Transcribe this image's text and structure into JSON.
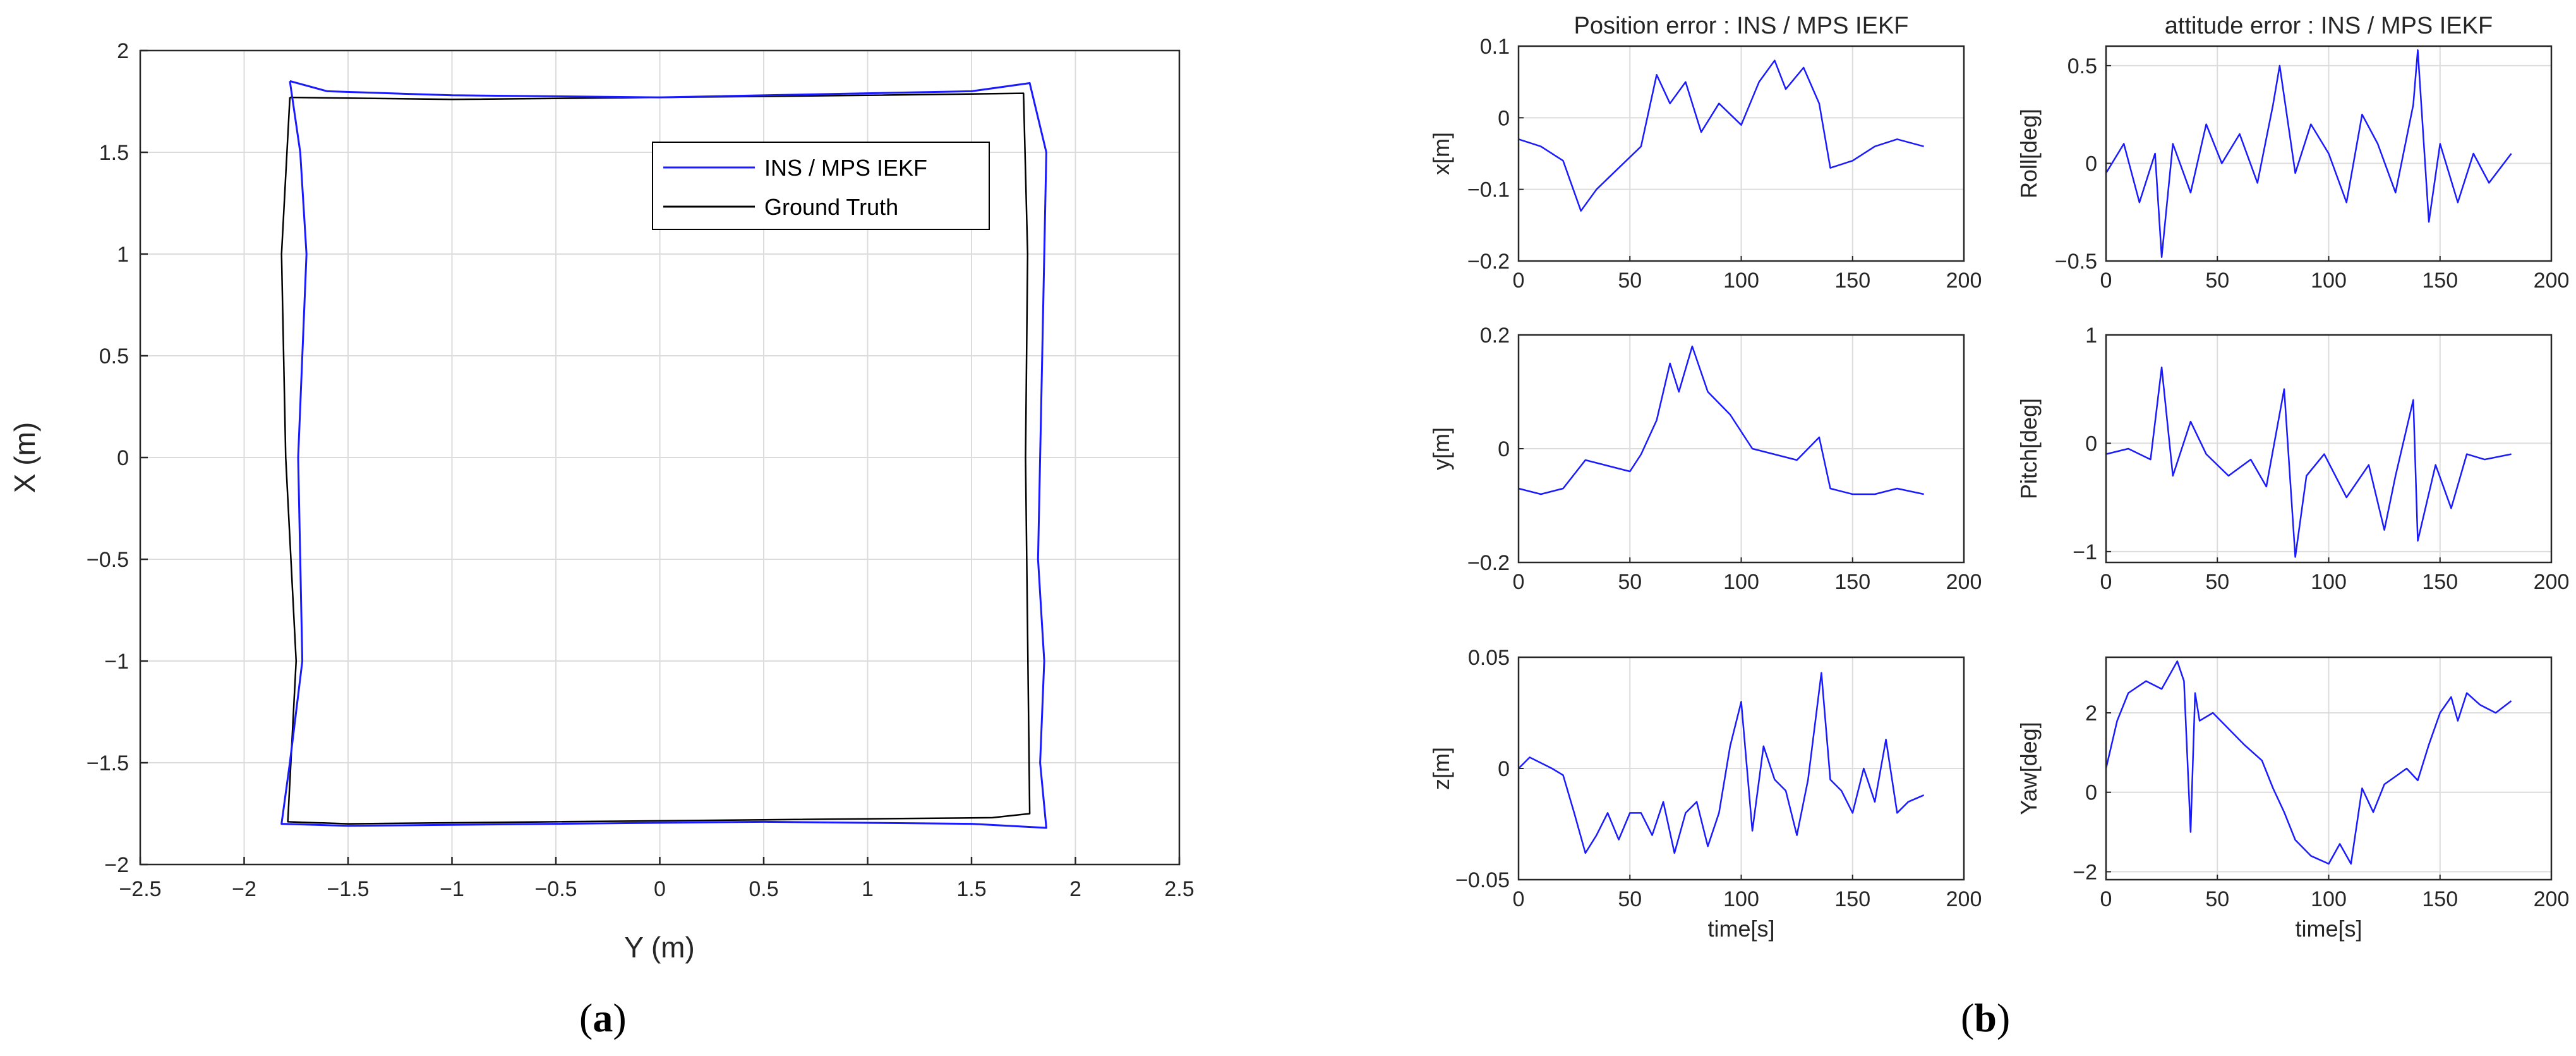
{
  "panel_labels": {
    "a": "a",
    "b": "b"
  },
  "chart_data": [
    {
      "id": "traj",
      "type": "line",
      "xlabel": "Y (m)",
      "ylabel": "X (m)",
      "xlim": [
        -2.5,
        2.5
      ],
      "ylim": [
        -2,
        2
      ],
      "xticks": [
        -2.5,
        -2,
        -1.5,
        -1,
        -0.5,
        0,
        0.5,
        1,
        1.5,
        2,
        2.5
      ],
      "yticks": [
        -2,
        -1.5,
        -1,
        -0.5,
        0,
        0.5,
        1,
        1.5,
        2
      ],
      "grid": true,
      "legend_position": "top-right",
      "series": [
        {
          "name": "INS / MPS IEKF",
          "color": "#1a1aff",
          "x": [
            -1.78,
            -1.6,
            -1.0,
            0.0,
            1.0,
            1.5,
            1.78,
            1.86,
            1.84,
            1.82,
            1.85,
            1.83,
            1.86,
            1.5,
            0.5,
            -0.5,
            -1.5,
            -1.82,
            -1.78,
            -1.72,
            -1.74,
            -1.7,
            -1.73,
            -1.78
          ],
          "y": [
            1.85,
            1.8,
            1.78,
            1.77,
            1.79,
            1.8,
            1.84,
            1.5,
            0.5,
            -0.5,
            -1.0,
            -1.5,
            -1.82,
            -1.8,
            -1.79,
            -1.8,
            -1.81,
            -1.8,
            -1.5,
            -1.0,
            0.0,
            1.0,
            1.5,
            1.85
          ]
        },
        {
          "name": "Ground Truth",
          "color": "#000000",
          "x": [
            -1.78,
            -1.0,
            0.0,
            1.0,
            1.75,
            1.77,
            1.76,
            1.78,
            1.6,
            0.5,
            -0.5,
            -1.5,
            -1.79,
            -1.75,
            -1.8,
            -1.82,
            -1.78
          ],
          "y": [
            1.77,
            1.76,
            1.77,
            1.78,
            1.79,
            1.0,
            0.0,
            -1.75,
            -1.77,
            -1.78,
            -1.79,
            -1.8,
            -1.79,
            -1.0,
            0.0,
            1.0,
            1.77
          ]
        }
      ]
    },
    {
      "id": "pos_x",
      "type": "line",
      "title": "Position error : INS / MPS IEKF",
      "xlabel": "",
      "ylabel": "x[m]",
      "xlim": [
        0,
        200
      ],
      "ylim": [
        -0.2,
        0.1
      ],
      "xticks": [
        0,
        50,
        100,
        150,
        200
      ],
      "yticks": [
        -0.2,
        -0.1,
        0,
        0.1
      ],
      "grid": true,
      "series": [
        {
          "color": "#1a1aff",
          "x": [
            0,
            10,
            20,
            28,
            35,
            45,
            55,
            62,
            68,
            75,
            82,
            90,
            100,
            108,
            115,
            120,
            128,
            135,
            140,
            150,
            160,
            170,
            182
          ],
          "y": [
            -0.03,
            -0.04,
            -0.06,
            -0.13,
            -0.1,
            -0.07,
            -0.04,
            0.06,
            0.02,
            0.05,
            -0.02,
            0.02,
            -0.01,
            0.05,
            0.08,
            0.04,
            0.07,
            0.02,
            -0.07,
            -0.06,
            -0.04,
            -0.03,
            -0.04
          ]
        }
      ]
    },
    {
      "id": "pos_y",
      "type": "line",
      "xlabel": "",
      "ylabel": "y[m]",
      "xlim": [
        0,
        200
      ],
      "ylim": [
        -0.2,
        0.2
      ],
      "xticks": [
        0,
        50,
        100,
        150,
        200
      ],
      "yticks": [
        -0.2,
        0,
        0.2
      ],
      "grid": true,
      "series": [
        {
          "color": "#1a1aff",
          "x": [
            0,
            10,
            20,
            30,
            40,
            50,
            55,
            62,
            68,
            72,
            78,
            85,
            95,
            105,
            115,
            125,
            135,
            140,
            150,
            160,
            170,
            182
          ],
          "y": [
            -0.07,
            -0.08,
            -0.07,
            -0.02,
            -0.03,
            -0.04,
            -0.01,
            0.05,
            0.15,
            0.1,
            0.18,
            0.1,
            0.06,
            0.0,
            -0.01,
            -0.02,
            0.02,
            -0.07,
            -0.08,
            -0.08,
            -0.07,
            -0.08
          ]
        }
      ]
    },
    {
      "id": "pos_z",
      "type": "line",
      "xlabel": "time[s]",
      "ylabel": "z[m]",
      "xlim": [
        0,
        200
      ],
      "ylim": [
        -0.05,
        0.05
      ],
      "xticks": [
        0,
        50,
        100,
        150,
        200
      ],
      "yticks": [
        -0.05,
        0,
        0.05
      ],
      "grid": true,
      "series": [
        {
          "color": "#1a1aff",
          "x": [
            0,
            5,
            15,
            20,
            25,
            30,
            35,
            40,
            45,
            50,
            55,
            60,
            65,
            70,
            75,
            80,
            85,
            90,
            95,
            100,
            105,
            110,
            115,
            120,
            125,
            130,
            136,
            140,
            145,
            150,
            155,
            160,
            165,
            170,
            175,
            182
          ],
          "y": [
            0.0,
            0.005,
            0.0,
            -0.003,
            -0.02,
            -0.038,
            -0.03,
            -0.02,
            -0.032,
            -0.02,
            -0.02,
            -0.03,
            -0.015,
            -0.038,
            -0.02,
            -0.015,
            -0.035,
            -0.02,
            0.01,
            0.03,
            -0.028,
            0.01,
            -0.005,
            -0.01,
            -0.03,
            -0.005,
            0.043,
            -0.005,
            -0.01,
            -0.02,
            0.0,
            -0.015,
            0.013,
            -0.02,
            -0.015,
            -0.012
          ]
        }
      ]
    },
    {
      "id": "att_roll",
      "type": "line",
      "title": "attitude error : INS / MPS IEKF",
      "xlabel": "",
      "ylabel": "Roll[deg]",
      "xlim": [
        0,
        200
      ],
      "ylim": [
        -0.5,
        0.6
      ],
      "xticks": [
        0,
        50,
        100,
        150,
        200
      ],
      "yticks": [
        -0.5,
        0,
        0.5
      ],
      "grid": true,
      "series": [
        {
          "color": "#1a1aff",
          "x": [
            0,
            8,
            15,
            22,
            25,
            30,
            38,
            45,
            52,
            60,
            68,
            75,
            78,
            85,
            92,
            100,
            108,
            115,
            122,
            130,
            138,
            140,
            145,
            150,
            158,
            165,
            172,
            182
          ],
          "y": [
            -0.05,
            0.1,
            -0.2,
            0.05,
            -0.48,
            0.1,
            -0.15,
            0.2,
            0.0,
            0.15,
            -0.1,
            0.3,
            0.5,
            -0.05,
            0.2,
            0.05,
            -0.2,
            0.25,
            0.1,
            -0.15,
            0.3,
            0.58,
            -0.3,
            0.1,
            -0.2,
            0.05,
            -0.1,
            0.05
          ]
        }
      ]
    },
    {
      "id": "att_pitch",
      "type": "line",
      "xlabel": "",
      "ylabel": "Pitch[deg]",
      "xlim": [
        0,
        200
      ],
      "ylim": [
        -1.1,
        1
      ],
      "xticks": [
        0,
        50,
        100,
        150,
        200
      ],
      "yticks": [
        -1,
        0,
        1
      ],
      "grid": true,
      "series": [
        {
          "color": "#1a1aff",
          "x": [
            0,
            10,
            20,
            25,
            30,
            38,
            45,
            55,
            65,
            72,
            80,
            85,
            90,
            98,
            108,
            118,
            125,
            130,
            138,
            140,
            148,
            155,
            162,
            170,
            182
          ],
          "y": [
            -0.1,
            -0.05,
            -0.15,
            0.7,
            -0.3,
            0.2,
            -0.1,
            -0.3,
            -0.15,
            -0.4,
            0.5,
            -1.05,
            -0.3,
            -0.1,
            -0.5,
            -0.2,
            -0.8,
            -0.3,
            0.4,
            -0.9,
            -0.2,
            -0.6,
            -0.1,
            -0.15,
            -0.1
          ]
        }
      ]
    },
    {
      "id": "att_yaw",
      "type": "line",
      "xlabel": "time[s]",
      "ylabel": "Yaw[deg]",
      "xlim": [
        0,
        200
      ],
      "ylim": [
        -2.2,
        3.4
      ],
      "xticks": [
        0,
        50,
        100,
        150,
        200
      ],
      "yticks": [
        -2,
        0,
        2
      ],
      "grid": true,
      "series": [
        {
          "color": "#1a1aff",
          "x": [
            0,
            5,
            10,
            18,
            25,
            32,
            35,
            38,
            40,
            42,
            48,
            55,
            62,
            70,
            75,
            80,
            85,
            92,
            100,
            105,
            110,
            115,
            120,
            125,
            130,
            135,
            140,
            145,
            150,
            155,
            158,
            162,
            168,
            175,
            182
          ],
          "y": [
            0.6,
            1.8,
            2.5,
            2.8,
            2.6,
            3.3,
            2.8,
            -1.0,
            2.5,
            1.8,
            2.0,
            1.6,
            1.2,
            0.8,
            0.1,
            -0.5,
            -1.2,
            -1.6,
            -1.8,
            -1.3,
            -1.8,
            0.1,
            -0.5,
            0.2,
            0.4,
            0.6,
            0.3,
            1.2,
            2.0,
            2.4,
            1.8,
            2.5,
            2.2,
            2.0,
            2.3
          ]
        }
      ]
    }
  ]
}
